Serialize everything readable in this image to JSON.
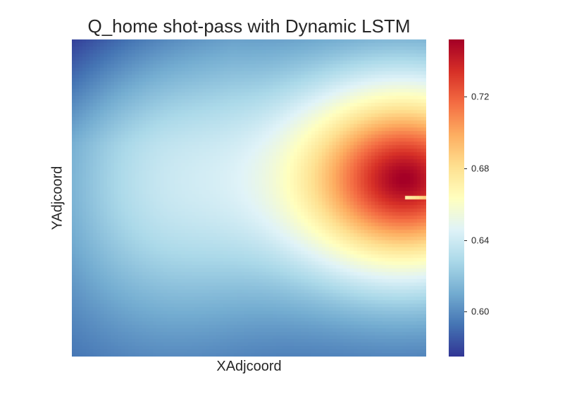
{
  "chart_data": {
    "type": "heatmap",
    "title": "Q_home shot-pass with Dynamic LSTM",
    "xlabel": "XAdjcoord",
    "ylabel": "YAdjcoord",
    "colormap": "RdYlBu_r",
    "value_range": [
      0.575,
      0.752
    ],
    "colorbar_ticks": [
      "0.60",
      "0.64",
      "0.68",
      "0.72"
    ],
    "colorbar_tick_values": [
      0.6,
      0.64,
      0.68,
      0.72
    ],
    "field": {
      "peak_value": 0.752,
      "peak_location": "right-center, slightly above midline",
      "corner_min_value": 0.59,
      "left_edge_value": 0.63,
      "bottom_edge_value": 0.62,
      "note": "discontinuity line at right edge near the peak"
    },
    "grid": false
  }
}
